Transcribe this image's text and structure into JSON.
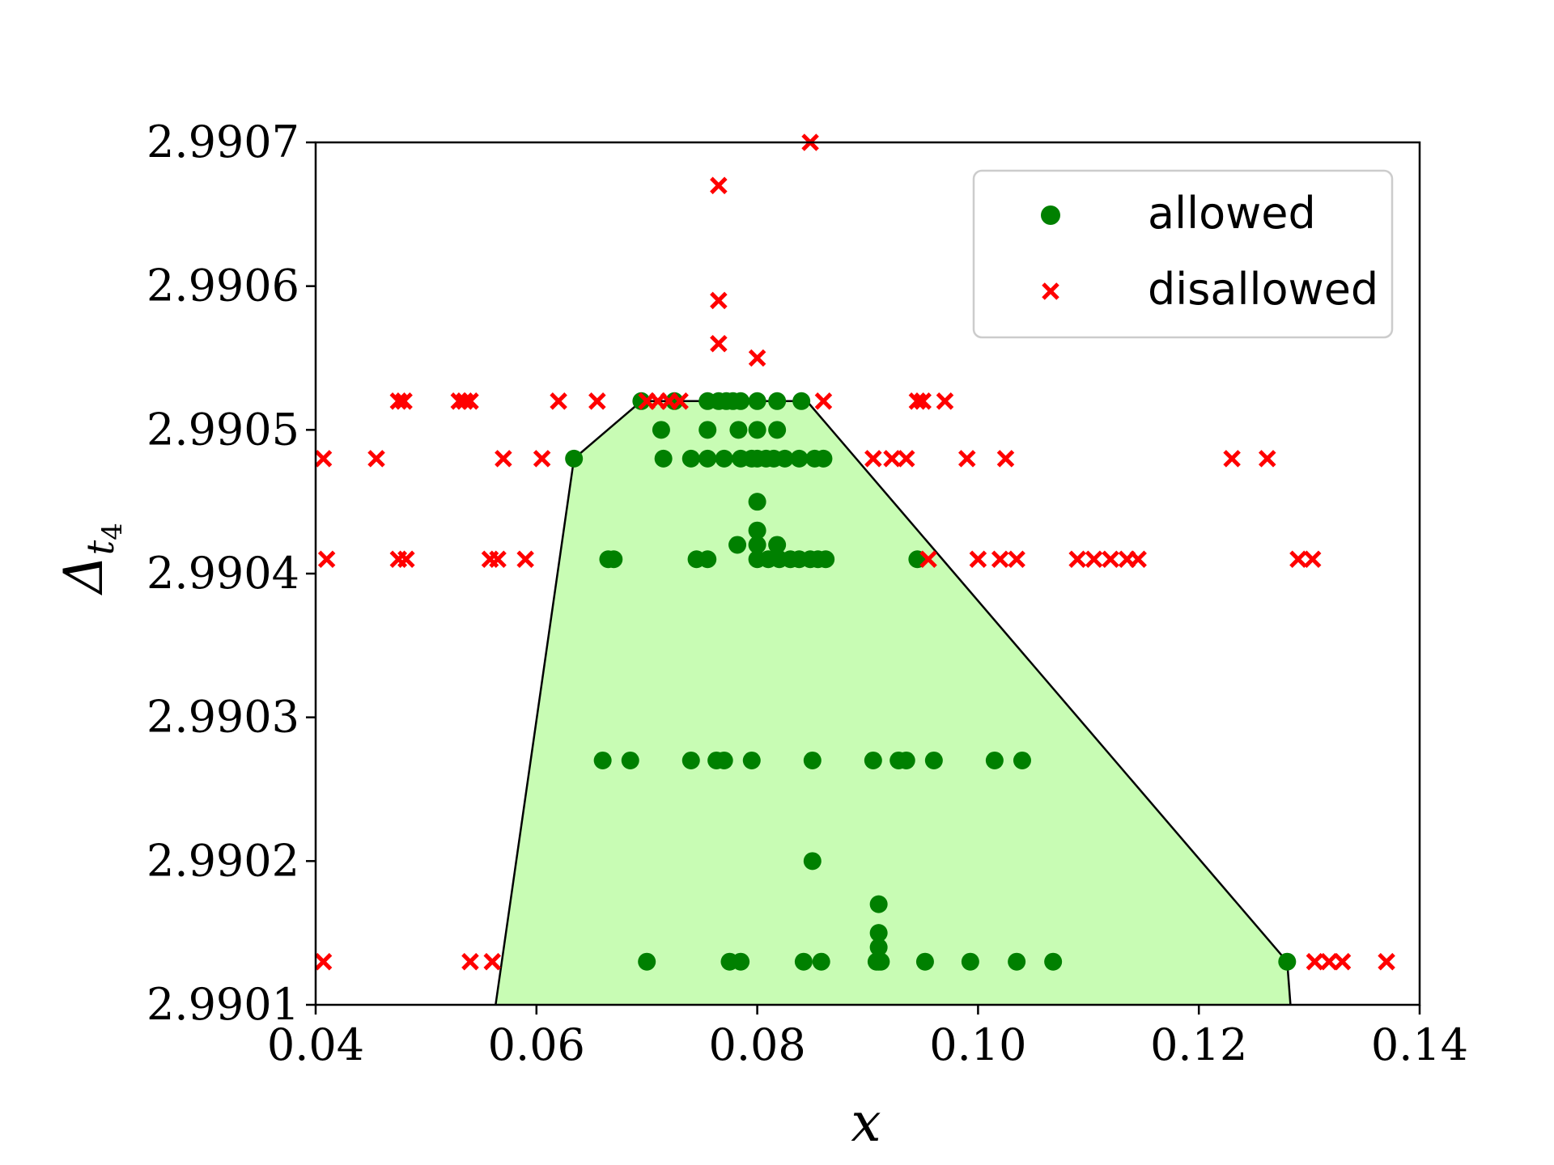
{
  "chart_data": {
    "type": "scatter",
    "xlabel": "x",
    "ylabel": "Δ",
    "ylabel_sub": "t",
    "ylabel_subsub": "4",
    "xlim": [
      0.04,
      0.14
    ],
    "ylim": [
      2.9901,
      2.9907
    ],
    "xticks": [
      0.04,
      0.06,
      0.08,
      0.1,
      0.12,
      0.14
    ],
    "xtick_labels": [
      "0.04",
      "0.06",
      "0.08",
      "0.10",
      "0.12",
      "0.14"
    ],
    "yticks": [
      2.9901,
      2.9902,
      2.9903,
      2.9904,
      2.9905,
      2.9906,
      2.9907
    ],
    "ytick_labels": [
      "2.9901",
      "2.9902",
      "2.9903",
      "2.9904",
      "2.9905",
      "2.9906",
      "2.9907"
    ],
    "grid": false,
    "legend_position": "upper right",
    "legend": [
      {
        "label": "allowed",
        "marker": "circle",
        "color": "#008000"
      },
      {
        "label": "disallowed",
        "marker": "x",
        "color": "#ff0000"
      }
    ],
    "region": {
      "fill": "#c8fcb4",
      "stroke": "#000000",
      "points": [
        [
          0.0563,
          2.9901
        ],
        [
          0.0634,
          2.99048
        ],
        [
          0.0695,
          2.99052
        ],
        [
          0.0845,
          2.99052
        ],
        [
          0.128,
          2.99013
        ],
        [
          0.1283,
          2.9901
        ]
      ]
    },
    "series": [
      {
        "name": "allowed",
        "color": "#008000",
        "marker": "circle",
        "points": [
          [
            0.0634,
            2.99048
          ],
          [
            0.0695,
            2.99052
          ],
          [
            0.0725,
            2.99052
          ],
          [
            0.0755,
            2.99052
          ],
          [
            0.0765,
            2.99052
          ],
          [
            0.0772,
            2.99052
          ],
          [
            0.0778,
            2.99052
          ],
          [
            0.0785,
            2.99052
          ],
          [
            0.08,
            2.99052
          ],
          [
            0.0818,
            2.99052
          ],
          [
            0.084,
            2.99052
          ],
          [
            0.0713,
            2.9905
          ],
          [
            0.0755,
            2.9905
          ],
          [
            0.0783,
            2.9905
          ],
          [
            0.08,
            2.9905
          ],
          [
            0.0818,
            2.9905
          ],
          [
            0.0715,
            2.99048
          ],
          [
            0.074,
            2.99048
          ],
          [
            0.0755,
            2.99048
          ],
          [
            0.077,
            2.99048
          ],
          [
            0.0785,
            2.99048
          ],
          [
            0.0795,
            2.99048
          ],
          [
            0.08,
            2.99048
          ],
          [
            0.0808,
            2.99048
          ],
          [
            0.0815,
            2.99048
          ],
          [
            0.0825,
            2.99048
          ],
          [
            0.0838,
            2.99048
          ],
          [
            0.0852,
            2.99048
          ],
          [
            0.086,
            2.99048
          ],
          [
            0.08,
            2.99045
          ],
          [
            0.08,
            2.99043
          ],
          [
            0.08,
            2.99042
          ],
          [
            0.0782,
            2.99042
          ],
          [
            0.0818,
            2.99042
          ],
          [
            0.0665,
            2.99041
          ],
          [
            0.067,
            2.99041
          ],
          [
            0.0745,
            2.99041
          ],
          [
            0.0755,
            2.99041
          ],
          [
            0.08,
            2.99041
          ],
          [
            0.081,
            2.99041
          ],
          [
            0.082,
            2.99041
          ],
          [
            0.083,
            2.99041
          ],
          [
            0.0838,
            2.99041
          ],
          [
            0.0848,
            2.99041
          ],
          [
            0.0855,
            2.99041
          ],
          [
            0.0862,
            2.99041
          ],
          [
            0.0945,
            2.99041
          ],
          [
            0.066,
            2.99027
          ],
          [
            0.0685,
            2.99027
          ],
          [
            0.074,
            2.99027
          ],
          [
            0.0763,
            2.99027
          ],
          [
            0.077,
            2.99027
          ],
          [
            0.0795,
            2.99027
          ],
          [
            0.085,
            2.99027
          ],
          [
            0.0905,
            2.99027
          ],
          [
            0.0928,
            2.99027
          ],
          [
            0.0935,
            2.99027
          ],
          [
            0.096,
            2.99027
          ],
          [
            0.1015,
            2.99027
          ],
          [
            0.104,
            2.99027
          ],
          [
            0.085,
            2.9902
          ],
          [
            0.091,
            2.99017
          ],
          [
            0.091,
            2.99015
          ],
          [
            0.091,
            2.99014
          ],
          [
            0.091,
            2.99013
          ],
          [
            0.07,
            2.99013
          ],
          [
            0.0775,
            2.99013
          ],
          [
            0.0785,
            2.99013
          ],
          [
            0.0842,
            2.99013
          ],
          [
            0.0858,
            2.99013
          ],
          [
            0.0908,
            2.99013
          ],
          [
            0.0912,
            2.99013
          ],
          [
            0.0952,
            2.99013
          ],
          [
            0.0993,
            2.99013
          ],
          [
            0.1035,
            2.99013
          ],
          [
            0.1068,
            2.99013
          ],
          [
            0.128,
            2.99013
          ]
        ]
      },
      {
        "name": "disallowed",
        "color": "#ff0000",
        "marker": "x",
        "points": [
          [
            0.0848,
            2.9907
          ],
          [
            0.0765,
            2.99067
          ],
          [
            0.0765,
            2.99059
          ],
          [
            0.0765,
            2.99056
          ],
          [
            0.08,
            2.99055
          ],
          [
            0.0475,
            2.99052
          ],
          [
            0.048,
            2.99052
          ],
          [
            0.053,
            2.99052
          ],
          [
            0.0535,
            2.99052
          ],
          [
            0.054,
            2.99052
          ],
          [
            0.062,
            2.99052
          ],
          [
            0.0655,
            2.99052
          ],
          [
            0.07,
            2.99052
          ],
          [
            0.071,
            2.99052
          ],
          [
            0.072,
            2.99052
          ],
          [
            0.073,
            2.99052
          ],
          [
            0.086,
            2.99052
          ],
          [
            0.0945,
            2.99052
          ],
          [
            0.095,
            2.99052
          ],
          [
            0.097,
            2.99052
          ],
          [
            0.0407,
            2.99048
          ],
          [
            0.0455,
            2.99048
          ],
          [
            0.057,
            2.99048
          ],
          [
            0.0605,
            2.99048
          ],
          [
            0.0905,
            2.99048
          ],
          [
            0.0922,
            2.99048
          ],
          [
            0.0935,
            2.99048
          ],
          [
            0.099,
            2.99048
          ],
          [
            0.1025,
            2.99048
          ],
          [
            0.123,
            2.99048
          ],
          [
            0.1262,
            2.99048
          ],
          [
            0.041,
            2.99041
          ],
          [
            0.0475,
            2.99041
          ],
          [
            0.0482,
            2.99041
          ],
          [
            0.0558,
            2.99041
          ],
          [
            0.0565,
            2.99041
          ],
          [
            0.059,
            2.99041
          ],
          [
            0.0955,
            2.99041
          ],
          [
            0.1,
            2.99041
          ],
          [
            0.102,
            2.99041
          ],
          [
            0.1035,
            2.99041
          ],
          [
            0.109,
            2.99041
          ],
          [
            0.1105,
            2.99041
          ],
          [
            0.112,
            2.99041
          ],
          [
            0.1135,
            2.99041
          ],
          [
            0.1145,
            2.99041
          ],
          [
            0.129,
            2.99041
          ],
          [
            0.1303,
            2.99041
          ],
          [
            0.0407,
            2.99013
          ],
          [
            0.054,
            2.99013
          ],
          [
            0.056,
            2.99013
          ],
          [
            0.1305,
            2.99013
          ],
          [
            0.1318,
            2.99013
          ],
          [
            0.133,
            2.99013
          ],
          [
            0.137,
            2.99013
          ]
        ]
      }
    ]
  }
}
